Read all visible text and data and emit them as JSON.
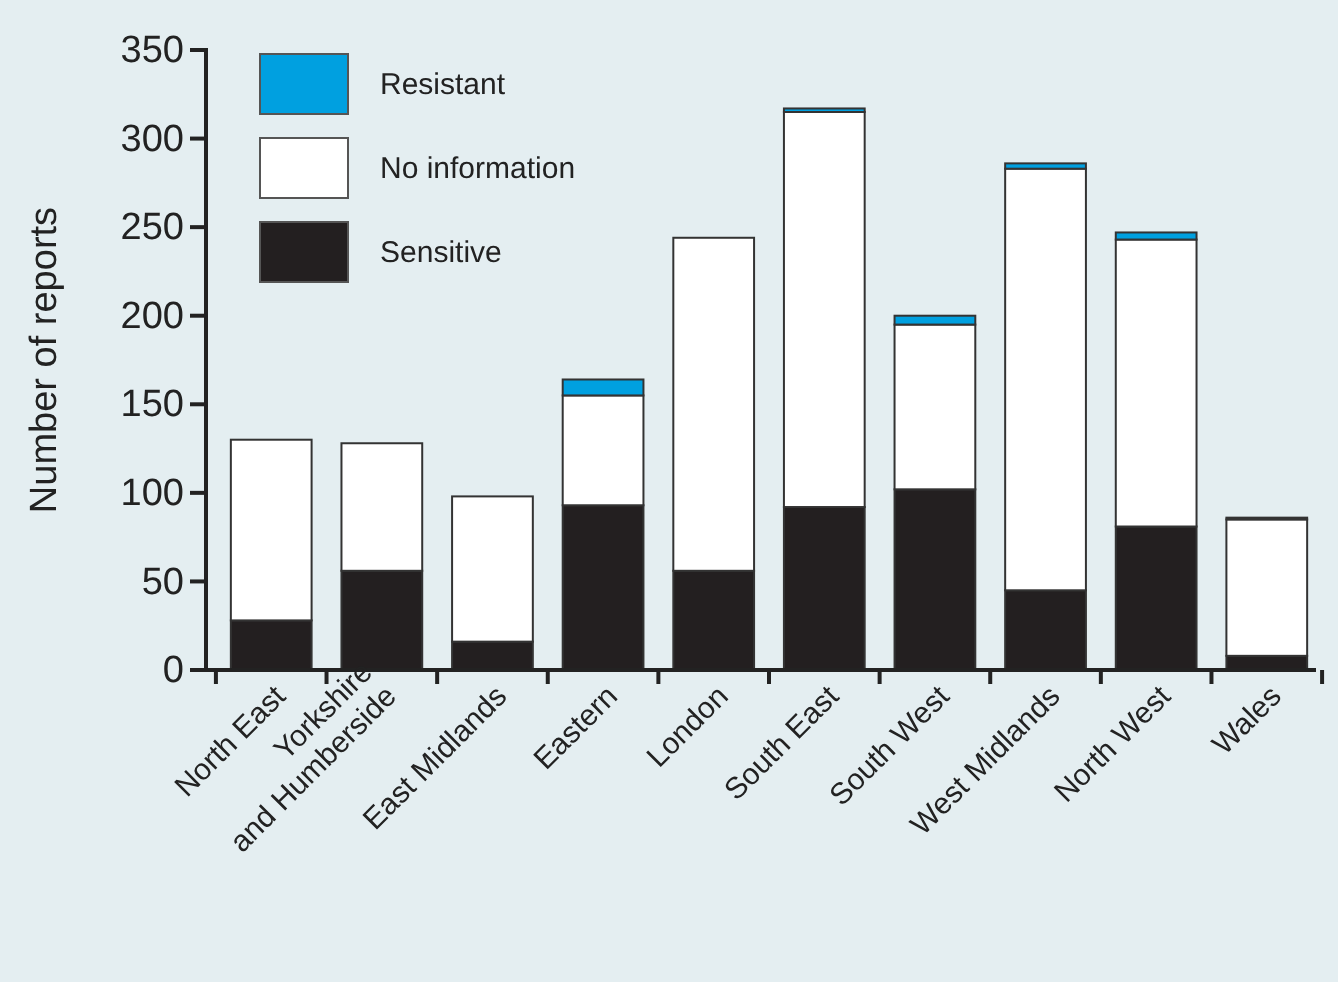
{
  "chart_data": {
    "type": "bar",
    "stacked": true,
    "ylabel": "Number of reports",
    "categories": [
      "North East",
      "Yorkshire\nand Humberside",
      "East Midlands",
      "Eastern",
      "London",
      "South East",
      "South West",
      "West Midlands",
      "North West",
      "Wales"
    ],
    "series": [
      {
        "name": "Sensitive",
        "color": "#231f20",
        "values": [
          28,
          56,
          16,
          93,
          56,
          92,
          102,
          45,
          81,
          8
        ]
      },
      {
        "name": "No information",
        "color": "#ffffff",
        "values": [
          102,
          72,
          82,
          62,
          188,
          223,
          93,
          238,
          162,
          77
        ]
      },
      {
        "name": "Resistant",
        "color": "#00a0e0",
        "values": [
          0,
          0,
          0,
          9,
          0,
          2,
          5,
          3,
          4,
          1
        ]
      }
    ],
    "ylim": [
      0,
      350
    ],
    "yticks": [
      0,
      50,
      100,
      150,
      200,
      250,
      300,
      350
    ],
    "legend": "top left"
  }
}
